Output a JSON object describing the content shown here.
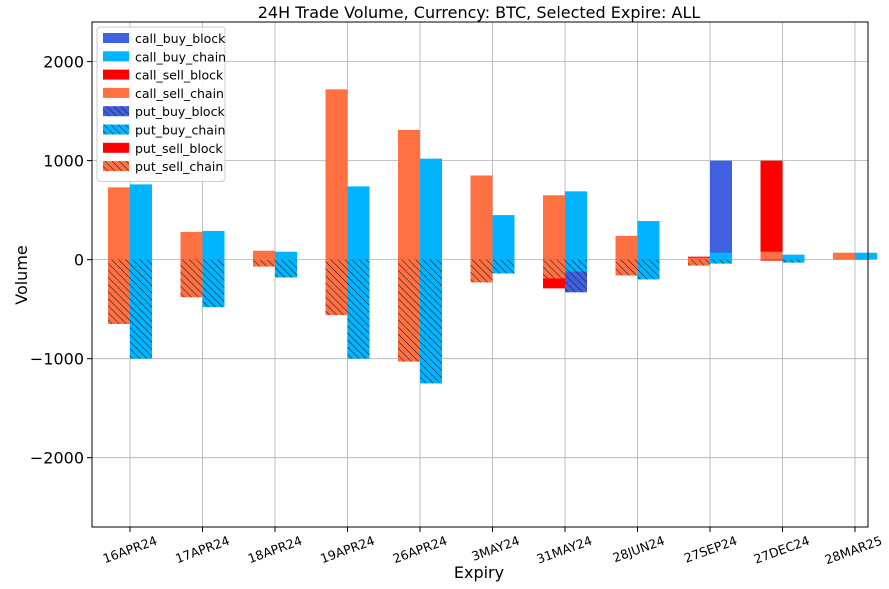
{
  "chart_data": {
    "type": "bar",
    "title": "24H Trade Volume, Currency: BTC, Selected Expire: ALL",
    "xlabel": "Expiry",
    "ylabel": "Volume",
    "ylim": [
      -2700,
      2400
    ],
    "yticks": [
      -2000,
      -1000,
      0,
      1000,
      2000
    ],
    "ytick_labels": [
      "−2000",
      "−1000",
      "0",
      "1000",
      "2000"
    ],
    "grid": true,
    "legend_position": "top-left",
    "categories": [
      "16APR24",
      "17APR24",
      "18APR24",
      "19APR24",
      "26APR24",
      "3MAY24",
      "31MAY24",
      "28JUN24",
      "27SEP24",
      "27DEC24",
      "28MAR25"
    ],
    "legend": [
      {
        "name": "call_buy_block",
        "color": "#4160e0",
        "hatch": false
      },
      {
        "name": "call_buy_chain",
        "color": "#00b4ff",
        "hatch": false
      },
      {
        "name": "call_sell_block",
        "color": "#ff0000",
        "hatch": false
      },
      {
        "name": "call_sell_chain",
        "color": "#ff7043",
        "hatch": false
      },
      {
        "name": "put_buy_block",
        "color": "#4160e0",
        "hatch": true
      },
      {
        "name": "put_buy_chain",
        "color": "#00b4ff",
        "hatch": true
      },
      {
        "name": "put_sell_block",
        "color": "#ff0000",
        "hatch": false
      },
      {
        "name": "put_sell_chain",
        "color": "#ff7043",
        "hatch": true
      }
    ],
    "series": [
      {
        "name": "call_buy_block",
        "position": "right",
        "direction": "positive",
        "values": [
          0,
          0,
          0,
          120,
          930,
          320,
          650,
          100,
          1000,
          0,
          0
        ]
      },
      {
        "name": "call_buy_chain",
        "position": "right",
        "direction": "positive",
        "values": [
          760,
          290,
          80,
          740,
          1020,
          450,
          690,
          390,
          70,
          50,
          70
        ]
      },
      {
        "name": "call_sell_block",
        "position": "left",
        "direction": "positive",
        "values": [
          0,
          40,
          0,
          160,
          840,
          150,
          550,
          0,
          30,
          1000,
          0
        ]
      },
      {
        "name": "call_sell_chain",
        "position": "left",
        "direction": "positive",
        "values": [
          730,
          280,
          90,
          1720,
          1310,
          850,
          650,
          240,
          20,
          80,
          70
        ]
      },
      {
        "name": "put_buy_block",
        "position": "right",
        "direction": "negative",
        "values": [
          -130,
          -30,
          0,
          -70,
          -1210,
          -20,
          -330,
          -30,
          -20,
          -10,
          0
        ]
      },
      {
        "name": "put_buy_chain",
        "position": "right",
        "direction": "negative",
        "values": [
          -1000,
          -480,
          -180,
          -1000,
          -1250,
          -140,
          -120,
          -200,
          -40,
          -30,
          0
        ]
      },
      {
        "name": "put_sell_block",
        "position": "left",
        "direction": "negative",
        "values": [
          -130,
          -50,
          0,
          -20,
          -520,
          -20,
          -290,
          -10,
          -10,
          -10,
          0
        ]
      },
      {
        "name": "put_sell_chain",
        "position": "left",
        "direction": "negative",
        "values": [
          -650,
          -380,
          -70,
          -560,
          -1030,
          -230,
          -190,
          -160,
          -60,
          0,
          0
        ]
      }
    ]
  }
}
